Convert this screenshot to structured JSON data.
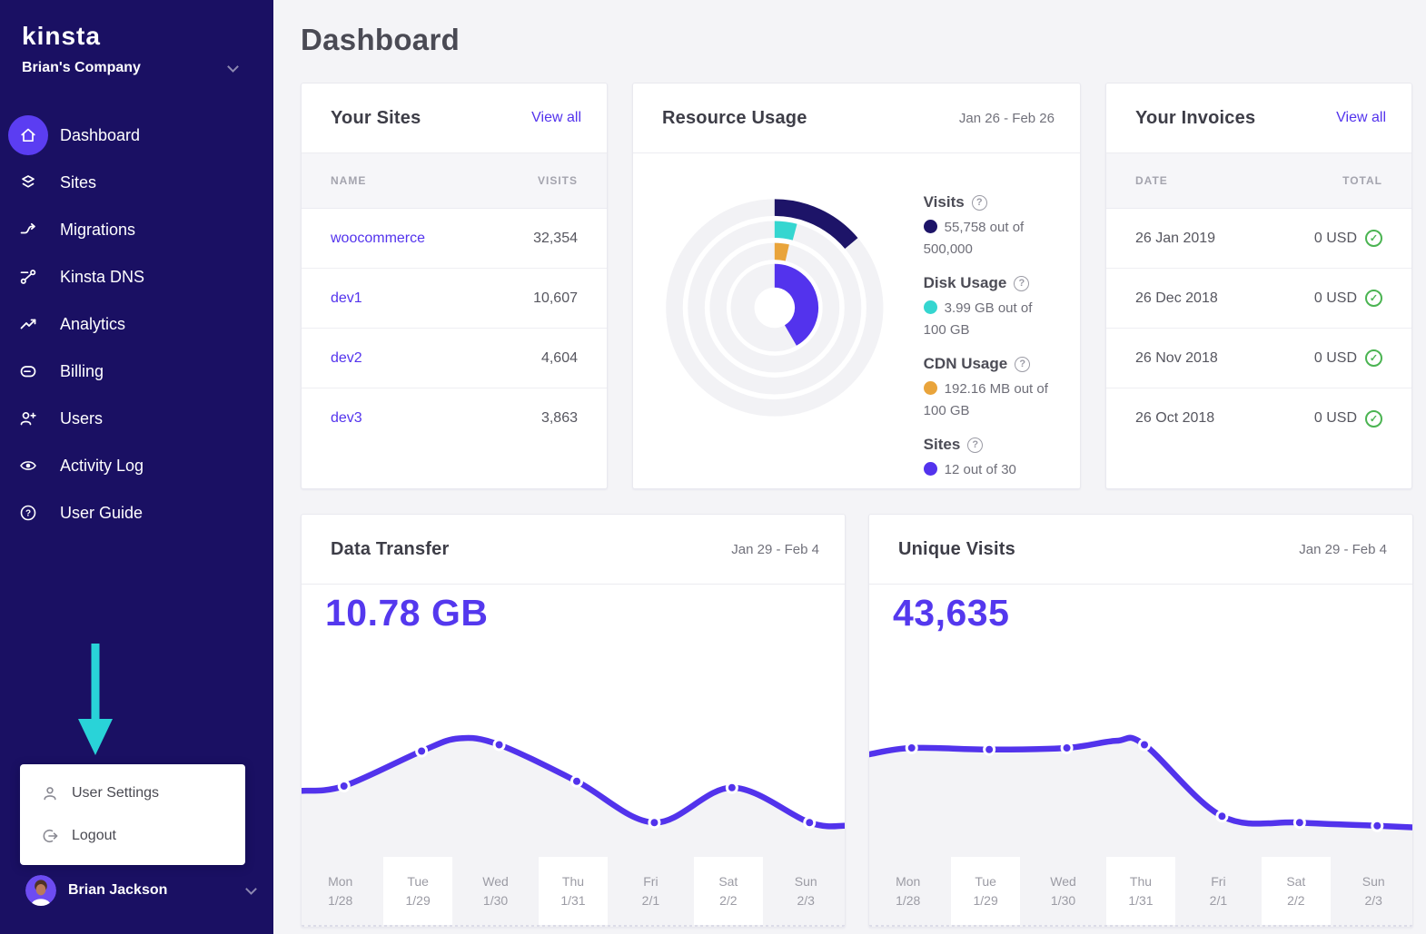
{
  "page": {
    "title": "Dashboard"
  },
  "colors": {
    "sidebar": "#1a1063",
    "accent": "#5333ed",
    "active_icon_bg": "#5b3df2",
    "line": "#5233ec",
    "area_fill": "#f3f3f6",
    "ring_track": "#f2f2f5",
    "navy": "#1d1468",
    "teal": "#35d6d0",
    "orange": "#e9a43b",
    "green_check": "#4bb452",
    "cyan_arrow": "#29d3d8",
    "big_number": "#5438ee"
  },
  "sidebar": {
    "logo": "kinsta",
    "company": "Brian's Company",
    "nav": [
      {
        "label": "Dashboard",
        "icon": "home-icon",
        "active": true
      },
      {
        "label": "Sites",
        "icon": "layers-icon"
      },
      {
        "label": "Migrations",
        "icon": "migration-arrow-icon"
      },
      {
        "label": "Kinsta DNS",
        "icon": "dns-nodes-icon"
      },
      {
        "label": "Analytics",
        "icon": "trend-up-icon"
      },
      {
        "label": "Billing",
        "icon": "credit-card-icon"
      },
      {
        "label": "Users",
        "icon": "add-user-icon"
      },
      {
        "label": "Activity Log",
        "icon": "eye-icon"
      },
      {
        "label": "User Guide",
        "icon": "question-circle-icon"
      }
    ],
    "user_menu": {
      "items": [
        {
          "label": "User Settings",
          "icon": "person-icon"
        },
        {
          "label": "Logout",
          "icon": "logout-icon"
        }
      ]
    },
    "user": {
      "name": "Brian Jackson"
    }
  },
  "your_sites": {
    "title": "Your Sites",
    "view_all": "View all",
    "columns": {
      "name": "NAME",
      "visits": "VISITS"
    },
    "rows": [
      {
        "name": "woocommerce",
        "visits": "32,354"
      },
      {
        "name": "dev1",
        "visits": "10,607"
      },
      {
        "name": "dev2",
        "visits": "4,604"
      },
      {
        "name": "dev3",
        "visits": "3,863"
      }
    ]
  },
  "resource_usage": {
    "title": "Resource Usage",
    "date_range": "Jan 26 - Feb 26",
    "legend": [
      {
        "label": "Visits",
        "value": "55,758 out of 500,000",
        "color": "#1d1468"
      },
      {
        "label": "Disk Usage",
        "value": "3.99 GB out of 100 GB",
        "color": "#35d6d0"
      },
      {
        "label": "CDN Usage",
        "value": "192.16 MB out of 100 GB",
        "color": "#e9a43b"
      },
      {
        "label": "Sites",
        "value": "12 out of 30",
        "color": "#5333ed"
      }
    ]
  },
  "your_invoices": {
    "title": "Your Invoices",
    "view_all": "View all",
    "columns": {
      "date": "DATE",
      "total": "TOTAL"
    },
    "rows": [
      {
        "date": "26 Jan 2019",
        "total": "0 USD",
        "status_icon": "check-circle"
      },
      {
        "date": "26 Dec 2018",
        "total": "0 USD",
        "status_icon": "check-circle"
      },
      {
        "date": "26 Nov 2018",
        "total": "0 USD",
        "status_icon": "check-circle"
      },
      {
        "date": "26 Oct 2018",
        "total": "0 USD",
        "status_icon": "check-circle"
      }
    ]
  },
  "data_transfer": {
    "title": "Data Transfer",
    "date_range": "Jan 29 - Feb 4",
    "total": "10.78 GB"
  },
  "unique_visits": {
    "title": "Unique Visits",
    "date_range": "Jan 29 - Feb 4",
    "total": "43,635"
  },
  "chart_data": [
    {
      "id": "resource-radial",
      "type": "radial",
      "title": "Resource Usage",
      "date_range": "Jan 26 - Feb 26",
      "rings": [
        {
          "label": "Visits",
          "value": 55758,
          "max": 500000,
          "unit": "visits",
          "color": "#1d1468",
          "arc_deg": 50
        },
        {
          "label": "Disk Usage",
          "value": 3.99,
          "max": 100,
          "unit": "GB",
          "color": "#35d6d0",
          "arc_deg": 15
        },
        {
          "label": "CDN Usage",
          "value": 192.16,
          "max": 102400,
          "unit": "MB",
          "color": "#e9a43b",
          "arc_deg": 13
        },
        {
          "label": "Sites",
          "value": 12,
          "max": 30,
          "unit": "sites",
          "color": "#5333ed",
          "arc_deg": 150
        }
      ]
    },
    {
      "id": "data-transfer",
      "type": "line",
      "title": "Data Transfer",
      "total_label": "10.78 GB",
      "y_axis": "unlabeled (relative 0-1 estimates)",
      "days": [
        {
          "day": "Mon",
          "date": "1/28"
        },
        {
          "day": "Tue",
          "date": "1/29"
        },
        {
          "day": "Wed",
          "date": "1/30"
        },
        {
          "day": "Thu",
          "date": "1/31"
        },
        {
          "day": "Fri",
          "date": "2/1"
        },
        {
          "day": "Sat",
          "date": "2/2"
        },
        {
          "day": "Sun",
          "date": "2/3"
        }
      ],
      "values_norm": [
        0.36,
        0.58,
        0.62,
        0.39,
        0.13,
        0.35,
        0.13
      ],
      "edge_norm": {
        "left": 0.33,
        "right": 0.11
      },
      "shape_peaks": [
        {
          "x_frac": 0.29,
          "y_norm": 0.66
        }
      ]
    },
    {
      "id": "unique-visits",
      "type": "line",
      "title": "Unique Visits",
      "total_label": "43,635",
      "y_axis": "unlabeled (relative 0-1 estimates)",
      "days": [
        {
          "day": "Mon",
          "date": "1/28"
        },
        {
          "day": "Tue",
          "date": "1/29"
        },
        {
          "day": "Wed",
          "date": "1/30"
        },
        {
          "day": "Thu",
          "date": "1/31"
        },
        {
          "day": "Fri",
          "date": "2/1"
        },
        {
          "day": "Sat",
          "date": "2/2"
        },
        {
          "day": "Sun",
          "date": "2/3"
        }
      ],
      "values_norm": [
        0.6,
        0.59,
        0.6,
        0.62,
        0.17,
        0.13,
        0.11
      ],
      "edge_norm": {
        "left": 0.56,
        "right": 0.1
      },
      "shape_peaks": [
        {
          "x_frac": 0.455,
          "y_norm": 0.645
        }
      ]
    }
  ]
}
